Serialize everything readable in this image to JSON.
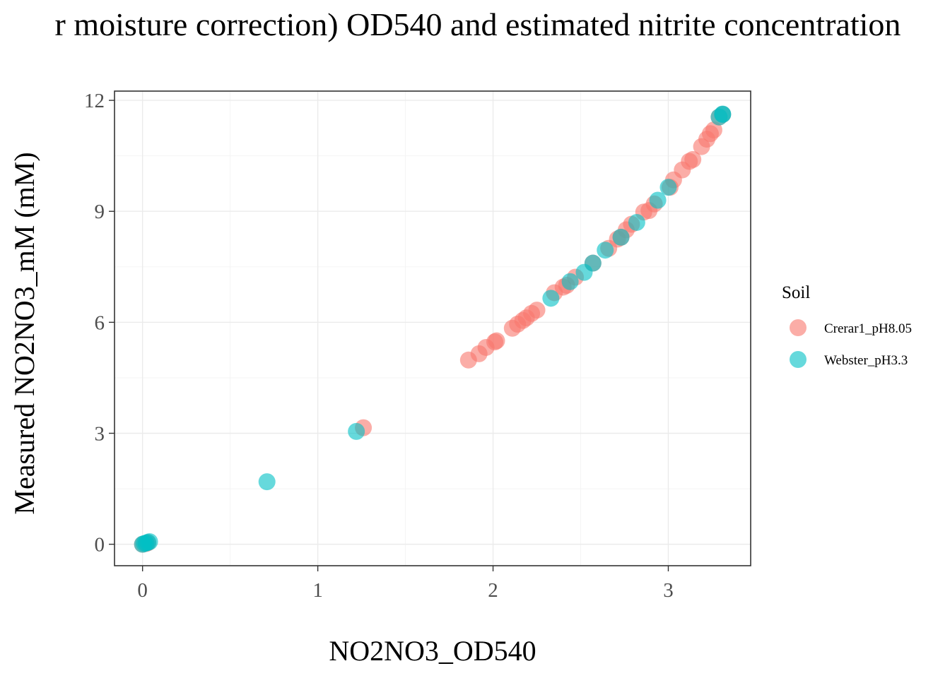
{
  "chart_data": {
    "type": "scatter",
    "title": "r moisture correction) OD540 and estimated nitrite concentration",
    "xlabel": "NO2NO3_OD540",
    "ylabel": "Measured NO2NO3_mM (mM)",
    "xlim": [
      -0.16,
      3.47
    ],
    "ylim": [
      -0.58,
      12.25
    ],
    "x_ticks": [
      0,
      1,
      2,
      3
    ],
    "x_tick_labels": [
      "0",
      "1",
      "2",
      "3"
    ],
    "y_ticks": [
      0,
      3,
      6,
      9,
      12
    ],
    "y_tick_labels": [
      "0",
      "3",
      "6",
      "9",
      "12"
    ],
    "grid": true,
    "legend_position": "right",
    "legend_title": "Soil",
    "series": [
      {
        "name": "Crerar1_pH8.05",
        "color": "#F8766D",
        "points": [
          [
            1.86,
            4.98
          ],
          [
            1.92,
            5.15
          ],
          [
            1.96,
            5.32
          ],
          [
            2.01,
            5.47
          ],
          [
            2.02,
            5.5
          ],
          [
            2.11,
            5.84
          ],
          [
            2.14,
            5.95
          ],
          [
            2.17,
            6.05
          ],
          [
            2.19,
            6.12
          ],
          [
            2.22,
            6.24
          ],
          [
            2.25,
            6.33
          ],
          [
            2.35,
            6.8
          ],
          [
            2.4,
            6.95
          ],
          [
            2.42,
            7.0
          ],
          [
            2.47,
            7.22
          ],
          [
            2.57,
            7.6
          ],
          [
            2.66,
            8.0
          ],
          [
            2.71,
            8.25
          ],
          [
            2.73,
            8.3
          ],
          [
            2.76,
            8.5
          ],
          [
            2.79,
            8.65
          ],
          [
            2.86,
            8.98
          ],
          [
            2.89,
            9.02
          ],
          [
            2.92,
            9.2
          ],
          [
            3.01,
            9.65
          ],
          [
            3.03,
            9.85
          ],
          [
            3.08,
            10.12
          ],
          [
            3.12,
            10.35
          ],
          [
            3.14,
            10.4
          ],
          [
            3.19,
            10.75
          ],
          [
            3.22,
            10.95
          ],
          [
            3.24,
            11.1
          ],
          [
            3.26,
            11.2
          ],
          [
            3.29,
            11.55
          ],
          [
            3.31,
            11.62
          ],
          [
            1.26,
            3.15
          ],
          [
            0.0,
            0.0
          ],
          [
            0.02,
            0.02
          ],
          [
            0.03,
            0.04
          ]
        ]
      },
      {
        "name": "Webster_pH3.3",
        "color": "#00BFC4",
        "points": [
          [
            0.0,
            0.0
          ],
          [
            0.01,
            0.02
          ],
          [
            0.02,
            0.03
          ],
          [
            0.03,
            0.05
          ],
          [
            0.04,
            0.07
          ],
          [
            0.71,
            1.69
          ],
          [
            1.22,
            3.05
          ],
          [
            2.33,
            6.65
          ],
          [
            2.44,
            7.1
          ],
          [
            2.52,
            7.35
          ],
          [
            2.57,
            7.6
          ],
          [
            2.64,
            7.95
          ],
          [
            2.73,
            8.3
          ],
          [
            2.82,
            8.7
          ],
          [
            2.94,
            9.3
          ],
          [
            3.0,
            9.65
          ],
          [
            3.29,
            11.55
          ],
          [
            3.31,
            11.62
          ],
          [
            3.31,
            11.63
          ]
        ]
      }
    ]
  }
}
